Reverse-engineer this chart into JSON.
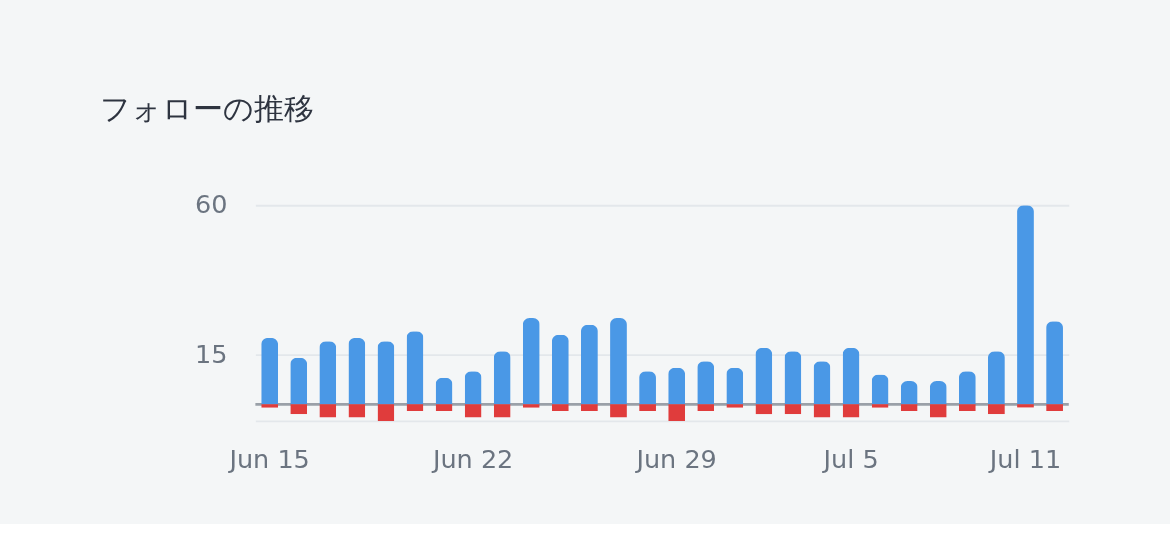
{
  "chart_data": {
    "type": "bar",
    "title": "フォローの推移",
    "categories": [
      "Jun 15",
      null,
      null,
      null,
      null,
      null,
      null,
      "Jun 22",
      null,
      null,
      null,
      null,
      null,
      null,
      "Jun 29",
      null,
      null,
      null,
      null,
      null,
      "Jul 5",
      null,
      null,
      null,
      null,
      null,
      "Jul 11",
      null
    ],
    "series": [
      {
        "color": "#4a98e6",
        "values": [
          20,
          14,
          19,
          20,
          19,
          22,
          8,
          10,
          16,
          26,
          21,
          24,
          26,
          10,
          11,
          13,
          11,
          17,
          16,
          13,
          17,
          9,
          7,
          7,
          10,
          16,
          60,
          25
        ]
      },
      {
        "color": "#e03c3c",
        "values": [
          -1,
          -3,
          -4,
          -4,
          -5,
          -2,
          -2,
          -4,
          -4,
          -1,
          -2,
          -2,
          -4,
          -2,
          -5,
          -2,
          -1,
          -3,
          -3,
          -4,
          -4,
          -1,
          -2,
          -4,
          -2,
          -3,
          -1,
          -2
        ]
      }
    ],
    "stacked": true,
    "ylim": [
      -5,
      60
    ],
    "yticks": [
      {
        "value": -5,
        "label": null
      },
      15,
      60
    ],
    "grid": "y",
    "ref_lines": [
      {
        "axis": "y",
        "value": 0,
        "color": "#9aa0a8"
      }
    ]
  }
}
